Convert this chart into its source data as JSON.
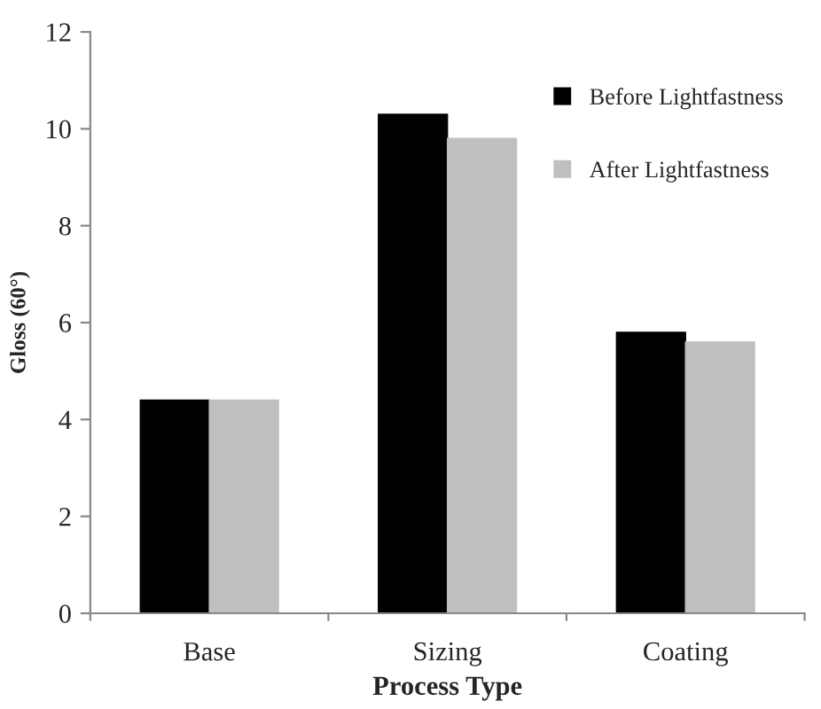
{
  "chart_data": {
    "type": "bar",
    "xlabel": "Process Type",
    "ylabel": "Gloss (60°)",
    "categories": [
      "Base",
      "Sizing",
      "Coating"
    ],
    "series": [
      {
        "name": "Before Lightfastness",
        "color": "#000000",
        "values": [
          4.4,
          10.3,
          5.8
        ]
      },
      {
        "name": "After Lightfastness",
        "color": "#bfbfbf",
        "values": [
          4.4,
          9.8,
          5.6
        ]
      }
    ],
    "ylim": [
      0,
      12
    ],
    "yticks": [
      0,
      2,
      4,
      6,
      8,
      10,
      12
    ],
    "grid": false,
    "legend": "top right"
  }
}
